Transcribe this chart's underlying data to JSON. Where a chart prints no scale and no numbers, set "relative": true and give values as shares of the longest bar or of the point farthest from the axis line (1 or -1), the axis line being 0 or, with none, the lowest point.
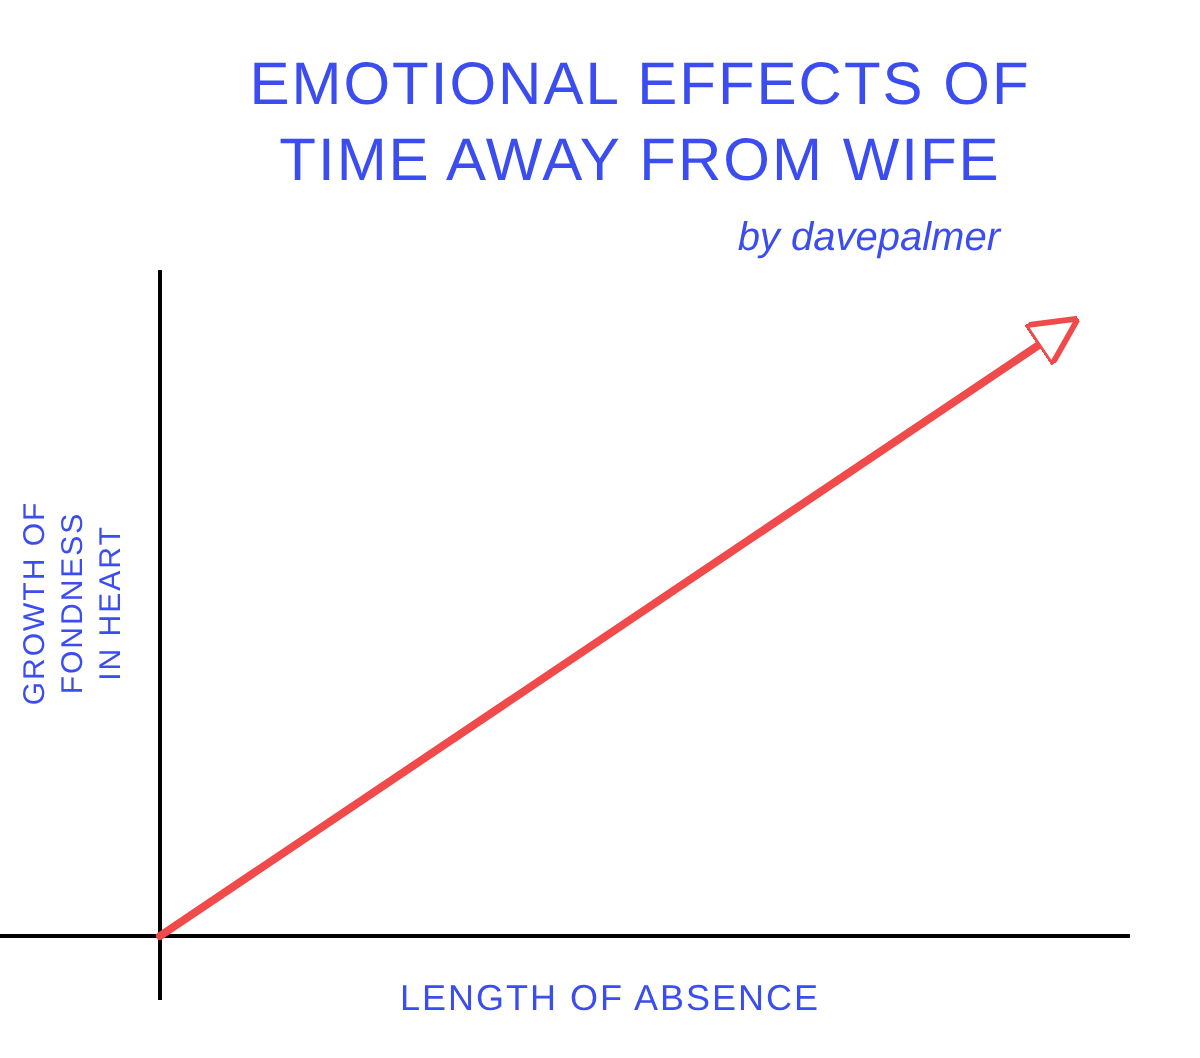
{
  "chart_data": {
    "type": "line",
    "title": "EMOTIONAL EFFECTS OF TIME AWAY FROM WIFE",
    "subtitle": "by davepalmer",
    "xlabel": "LENGTH OF ABSENCE",
    "ylabel": "GROWTH OF FONDNESS IN HEART",
    "relative": true,
    "categories": [
      null,
      null
    ],
    "series": [
      {
        "color": "#f04a4a",
        "values": [
          0,
          1
        ]
      }
    ],
    "marker": "none",
    "line_style": "solid"
  }
}
